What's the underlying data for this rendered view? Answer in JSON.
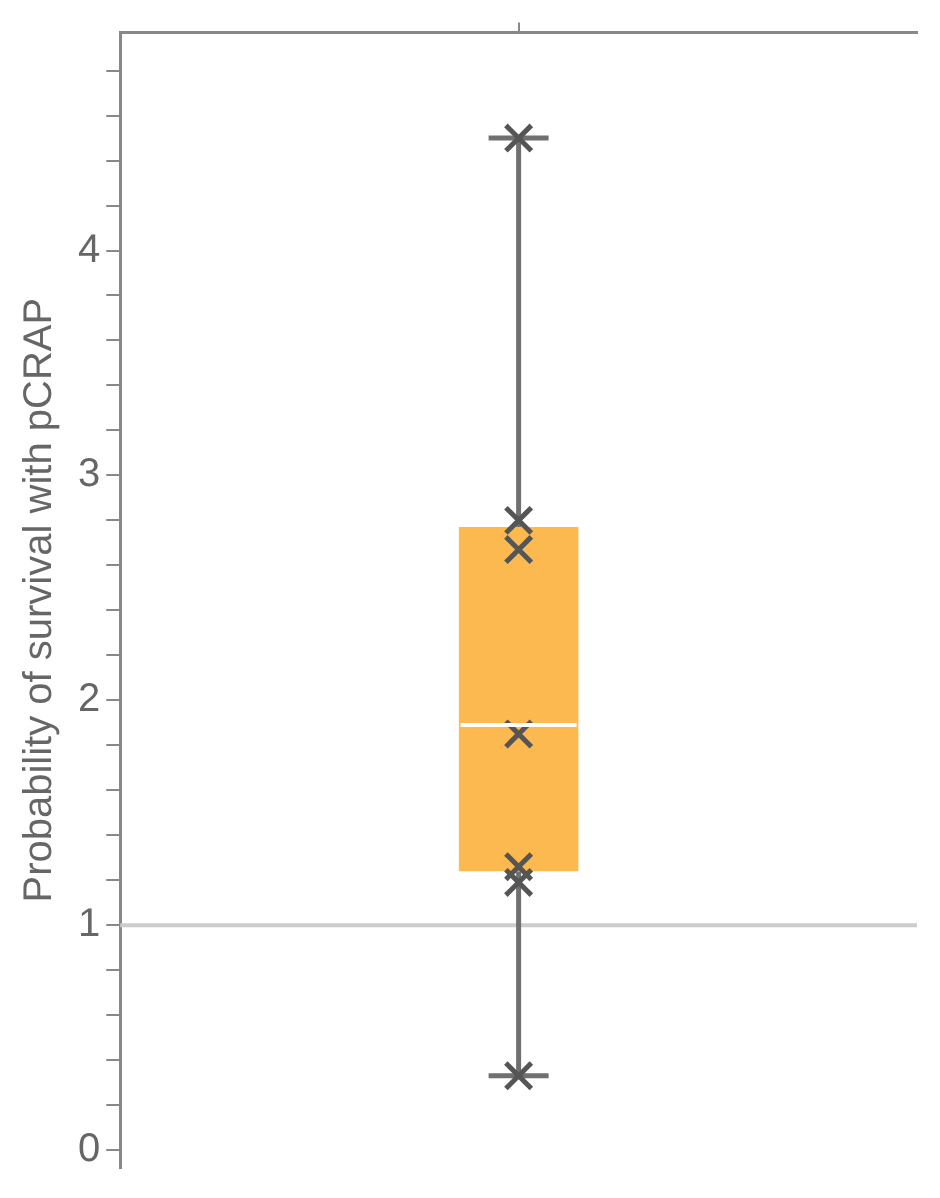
{
  "chart_data": {
    "type": "box",
    "ylabel": "Probability of survival with pCRAP",
    "categories": [
      null
    ],
    "series": [
      {
        "color": "#fbb950",
        "boxes": [
          {
            "low": 0.33,
            "q1": 1.24,
            "median": 1.89,
            "q3": 2.77,
            "high": 4.5
          }
        ]
      },
      {
        "type": "scatter",
        "color": "#555555",
        "x": [
          null,
          null,
          null,
          null,
          null,
          null,
          null
        ],
        "values": [
          4.5,
          2.8,
          2.67,
          1.85,
          1.26,
          1.19,
          0.33
        ]
      }
    ],
    "marker": "cross",
    "grid": false,
    "ref_lines": [
      {
        "axis": "y",
        "value": 1,
        "color": "#cccccc"
      }
    ],
    "ylim": [
      -0.08,
      4.97
    ],
    "yticks": [
      0,
      {
        "value": 0.2,
        "label": null
      },
      {
        "value": 0.4,
        "label": null
      },
      {
        "value": 0.6,
        "label": null
      },
      {
        "value": 0.8,
        "label": null
      },
      1,
      {
        "value": 1.2,
        "label": null
      },
      {
        "value": 1.4,
        "label": null
      },
      {
        "value": 1.6,
        "label": null
      },
      {
        "value": 1.8,
        "label": null
      },
      2,
      {
        "value": 2.2,
        "label": null
      },
      {
        "value": 2.4,
        "label": null
      },
      {
        "value": 2.6,
        "label": null
      },
      {
        "value": 2.8,
        "label": null
      },
      3,
      {
        "value": 3.2,
        "label": null
      },
      {
        "value": 3.4,
        "label": null
      },
      {
        "value": 3.6,
        "label": null
      },
      {
        "value": 3.8,
        "label": null
      },
      4,
      {
        "value": 4.2,
        "label": null
      },
      {
        "value": 4.4,
        "label": null
      },
      {
        "value": 4.6,
        "label": null
      },
      {
        "value": 4.8,
        "label": null
      }
    ]
  }
}
